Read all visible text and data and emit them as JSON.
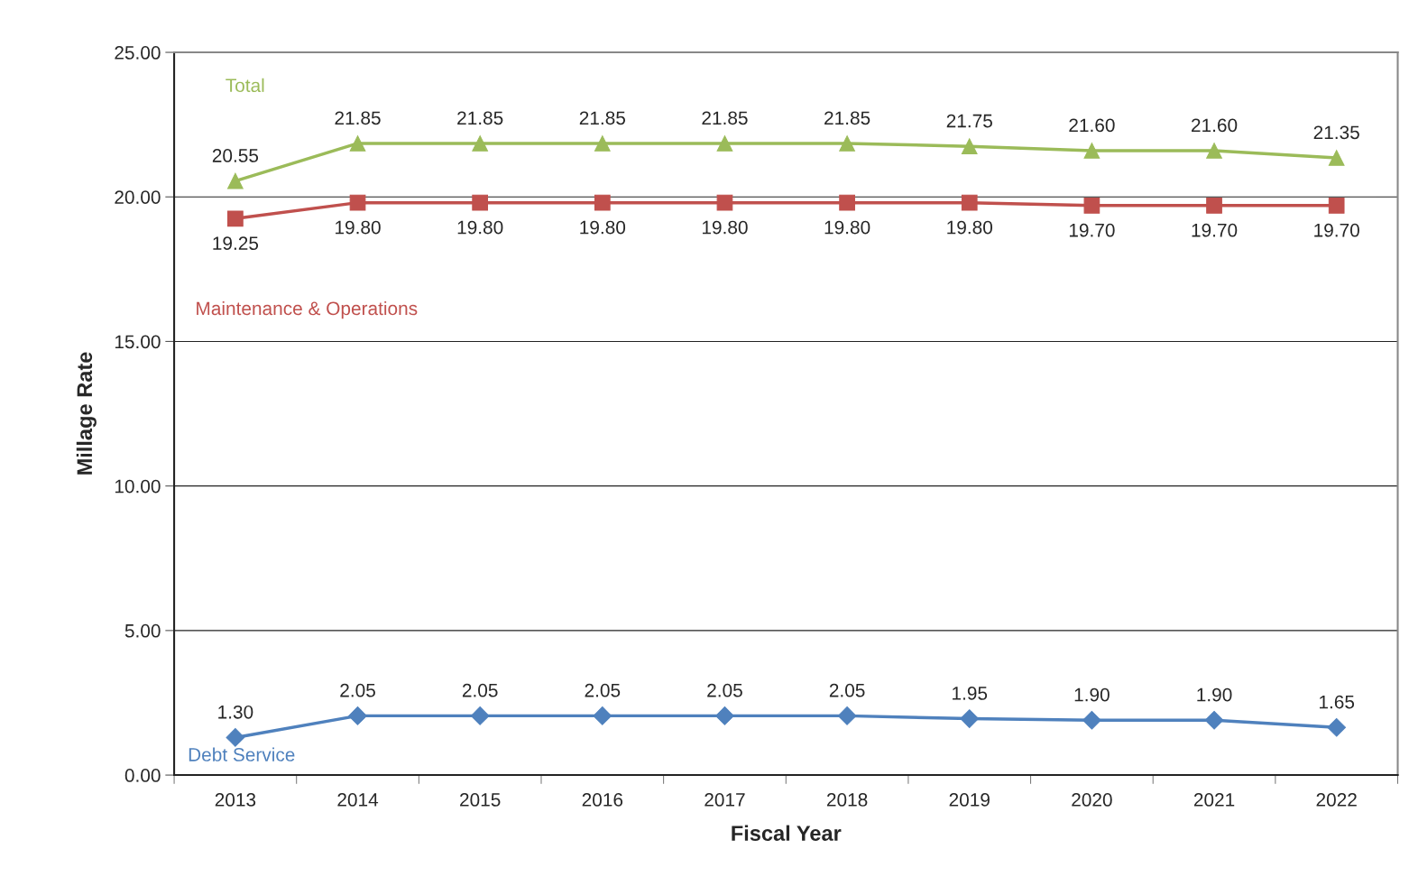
{
  "chart_data": {
    "type": "line",
    "xlabel": "Fiscal Year",
    "ylabel": "Millage Rate",
    "categories": [
      "2013",
      "2014",
      "2015",
      "2016",
      "2017",
      "2018",
      "2019",
      "2020",
      "2021",
      "2022"
    ],
    "series": [
      {
        "name": "Total",
        "color": "#9bbb59",
        "marker": "triangle",
        "values": [
          20.55,
          21.85,
          21.85,
          21.85,
          21.85,
          21.85,
          21.75,
          21.6,
          21.6,
          21.35
        ],
        "value_labels": [
          "20.55",
          "21.85",
          "21.85",
          "21.85",
          "21.85",
          "21.85",
          "21.75",
          "21.60",
          "21.60",
          "21.35"
        ]
      },
      {
        "name": "Maintenance & Operations",
        "color": "#c0504d",
        "marker": "square",
        "values": [
          19.25,
          19.8,
          19.8,
          19.8,
          19.8,
          19.8,
          19.8,
          19.7,
          19.7,
          19.7
        ],
        "value_labels": [
          "19.25",
          "19.80",
          "19.80",
          "19.80",
          "19.80",
          "19.80",
          "19.80",
          "19.70",
          "19.70",
          "19.70"
        ]
      },
      {
        "name": "Debt Service",
        "color": "#4f81bd",
        "marker": "diamond",
        "values": [
          1.3,
          2.05,
          2.05,
          2.05,
          2.05,
          2.05,
          1.95,
          1.9,
          1.9,
          1.65
        ],
        "value_labels": [
          "1.30",
          "2.05",
          "2.05",
          "2.05",
          "2.05",
          "2.05",
          "1.95",
          "1.90",
          "1.90",
          "1.65"
        ]
      }
    ],
    "ylim": [
      0,
      25
    ],
    "yticks": [
      {
        "value": 0,
        "label": "0.00"
      },
      {
        "value": 5,
        "label": "5.00"
      },
      {
        "value": 10,
        "label": "10.00"
      },
      {
        "value": 15,
        "label": "15.00"
      },
      {
        "value": 20,
        "label": "20.00"
      },
      {
        "value": 25,
        "label": "25.00"
      }
    ],
    "grid": "y",
    "legend": false,
    "line_style": "solid"
  }
}
